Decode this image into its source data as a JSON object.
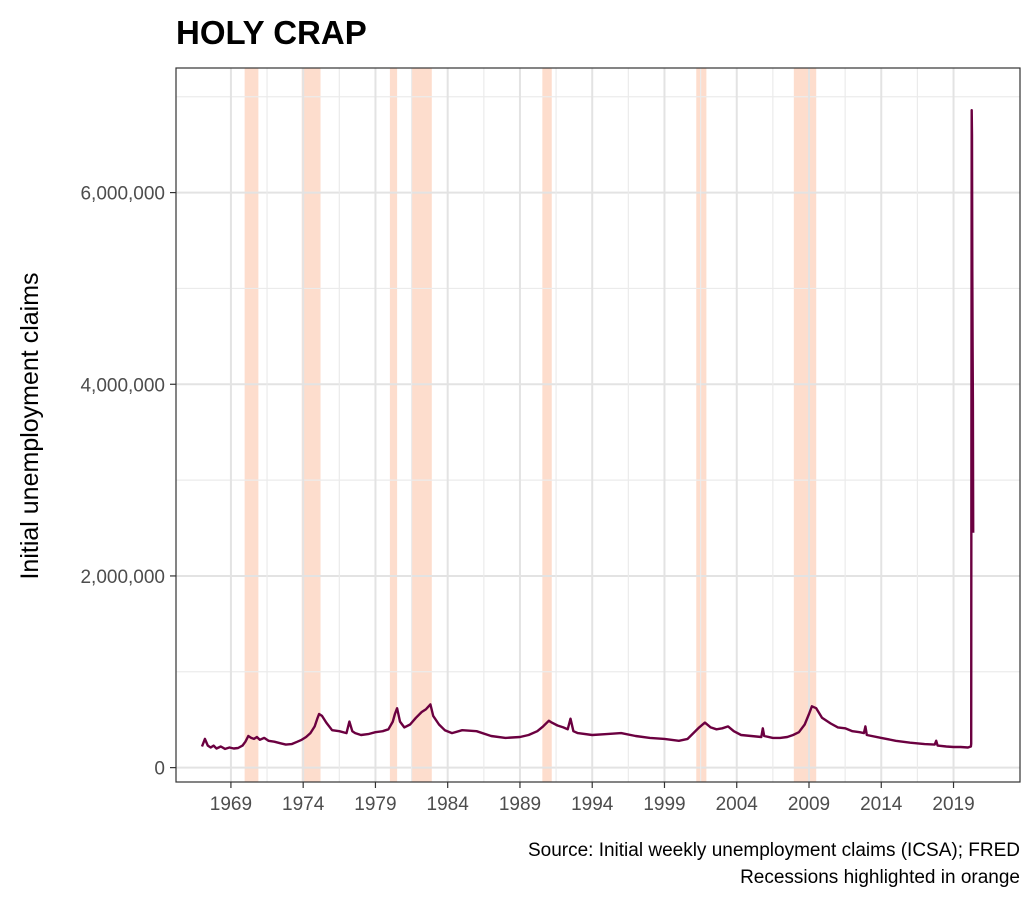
{
  "chart_data": {
    "type": "line",
    "title": "HOLY CRAP",
    "xlabel": "",
    "ylabel": "Initial unemployment claims",
    "xlim": [
      1965.2,
      2023.6
    ],
    "ylim": [
      -150000,
      7300000
    ],
    "x_ticks": [
      "1969",
      "1974",
      "1979",
      "1984",
      "1989",
      "1994",
      "1999",
      "2004",
      "2009",
      "2014",
      "2019"
    ],
    "x_tick_values": [
      1969,
      1974,
      1979,
      1984,
      1989,
      1994,
      1999,
      2004,
      2009,
      2014,
      2019
    ],
    "y_ticks": [
      "0",
      "2,000,000",
      "4,000,000",
      "6,000,000"
    ],
    "y_tick_values": [
      0,
      2000000,
      4000000,
      6000000
    ],
    "y_minor_tick_values": [
      1000000,
      3000000,
      5000000,
      7000000
    ],
    "grid": true,
    "line_color": "#6b0040",
    "recession_color": "#fcd5c0",
    "recessions": [
      [
        1969.95,
        1970.9
      ],
      [
        1973.9,
        1975.2
      ],
      [
        1980.0,
        1980.5
      ],
      [
        1981.5,
        1982.9
      ],
      [
        1990.55,
        1991.2
      ],
      [
        2001.2,
        2001.9
      ],
      [
        2007.95,
        2009.5
      ]
    ],
    "series": [
      {
        "x": [
          1967.0,
          1967.2,
          1967.4,
          1967.6,
          1967.8,
          1968.0,
          1968.3,
          1968.6,
          1968.9,
          1969.2,
          1969.5,
          1969.8,
          1970.0,
          1970.2,
          1970.4,
          1970.6,
          1970.8,
          1971.0,
          1971.3,
          1971.6,
          1972.0,
          1972.4,
          1972.8,
          1973.2,
          1973.6,
          1973.9,
          1974.2,
          1974.5,
          1974.8,
          1975.0,
          1975.1,
          1975.3,
          1975.6,
          1976.0,
          1976.5,
          1977.0,
          1977.2,
          1977.4,
          1977.6,
          1978.0,
          1978.5,
          1979.0,
          1979.5,
          1979.9,
          1980.2,
          1980.35,
          1980.5,
          1980.7,
          1981.0,
          1981.4,
          1981.8,
          1982.2,
          1982.5,
          1982.8,
          1983.0,
          1983.4,
          1983.8,
          1984.3,
          1985.0,
          1986.0,
          1987.0,
          1988.0,
          1989.0,
          1989.6,
          1990.2,
          1990.6,
          1991.0,
          1991.2,
          1991.6,
          1992.0,
          1992.3,
          1992.5,
          1992.7,
          1993.0,
          1994.0,
          1995.0,
          1996.0,
          1997.0,
          1998.0,
          1999.0,
          2000.0,
          2000.6,
          2001.0,
          2001.4,
          2001.8,
          2002.2,
          2002.6,
          2003.0,
          2003.4,
          2003.8,
          2004.3,
          2005.0,
          2005.7,
          2005.8,
          2005.9,
          2006.5,
          2007.0,
          2007.5,
          2007.9,
          2008.3,
          2008.7,
          2009.0,
          2009.2,
          2009.5,
          2009.9,
          2010.5,
          2011.0,
          2011.5,
          2012.0,
          2012.5,
          2012.8,
          2012.9,
          2013.0,
          2014.0,
          2015.0,
          2016.0,
          2017.0,
          2017.7,
          2017.8,
          2017.9,
          2018.5,
          2019.0,
          2019.5,
          2020.0,
          2020.1,
          2020.2,
          2020.22,
          2020.24,
          2020.26,
          2020.28,
          2020.3,
          2020.32,
          2020.34,
          2020.36
        ],
        "y": [
          220000,
          300000,
          230000,
          210000,
          230000,
          200000,
          220000,
          195000,
          210000,
          200000,
          205000,
          230000,
          270000,
          330000,
          310000,
          300000,
          320000,
          290000,
          310000,
          280000,
          270000,
          255000,
          240000,
          245000,
          270000,
          290000,
          320000,
          360000,
          430000,
          520000,
          560000,
          540000,
          470000,
          390000,
          380000,
          360000,
          480000,
          380000,
          360000,
          340000,
          350000,
          370000,
          380000,
          400000,
          480000,
          560000,
          620000,
          480000,
          420000,
          450000,
          520000,
          580000,
          610000,
          660000,
          540000,
          450000,
          390000,
          360000,
          390000,
          380000,
          330000,
          310000,
          320000,
          340000,
          380000,
          430000,
          490000,
          470000,
          440000,
          420000,
          400000,
          510000,
          380000,
          360000,
          340000,
          350000,
          360000,
          330000,
          310000,
          300000,
          280000,
          300000,
          360000,
          420000,
          470000,
          420000,
          400000,
          410000,
          430000,
          380000,
          340000,
          330000,
          320000,
          410000,
          330000,
          310000,
          310000,
          320000,
          340000,
          370000,
          450000,
          560000,
          640000,
          620000,
          520000,
          460000,
          420000,
          410000,
          380000,
          370000,
          360000,
          430000,
          340000,
          310000,
          280000,
          260000,
          245000,
          240000,
          280000,
          230000,
          220000,
          215000,
          215000,
          210000,
          215000,
          220000,
          250000,
          3300000,
          6860000,
          6600000,
          5200000,
          4400000,
          3800000,
          2450000
        ]
      }
    ],
    "caption_lines": [
      "Source: Initial weekly unemployment claims (ICSA); FRED",
      "Recessions highlighted in orange"
    ]
  }
}
